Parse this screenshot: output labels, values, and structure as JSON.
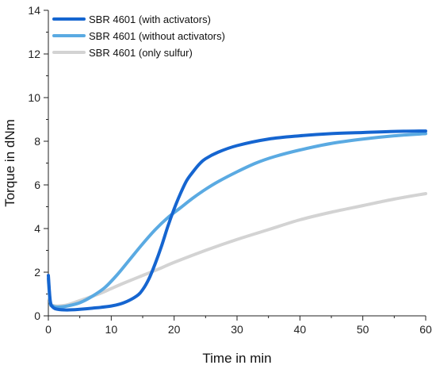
{
  "chart_data": {
    "type": "line",
    "xlabel": "Time in min",
    "ylabel": "Torque in dNm",
    "xlim": [
      0,
      60
    ],
    "ylim": [
      0,
      14
    ],
    "x_ticks": [
      "0",
      "10",
      "20",
      "30",
      "40",
      "50",
      "60"
    ],
    "y_ticks": [
      "0",
      "2",
      "4",
      "6",
      "8",
      "10",
      "12",
      "14"
    ],
    "grid": false,
    "legend_position": "top-left",
    "series": [
      {
        "name": "SBR 4601 (with activators)",
        "color": "#1565d0",
        "points": [
          [
            0,
            1.85
          ],
          [
            0.3,
            0.7
          ],
          [
            0.7,
            0.4
          ],
          [
            1.5,
            0.3
          ],
          [
            3,
            0.27
          ],
          [
            5,
            0.3
          ],
          [
            7,
            0.35
          ],
          [
            10,
            0.45
          ],
          [
            12,
            0.6
          ],
          [
            14,
            0.9
          ],
          [
            15,
            1.2
          ],
          [
            16,
            1.7
          ],
          [
            17,
            2.4
          ],
          [
            18,
            3.2
          ],
          [
            19,
            4.1
          ],
          [
            20,
            4.9
          ],
          [
            21,
            5.6
          ],
          [
            22,
            6.2
          ],
          [
            23,
            6.6
          ],
          [
            24,
            6.95
          ],
          [
            25,
            7.2
          ],
          [
            27,
            7.5
          ],
          [
            30,
            7.8
          ],
          [
            35,
            8.1
          ],
          [
            40,
            8.25
          ],
          [
            45,
            8.35
          ],
          [
            50,
            8.4
          ],
          [
            55,
            8.45
          ],
          [
            60,
            8.47
          ]
        ]
      },
      {
        "name": "SBR 4601 (without activators)",
        "color": "#5aaae2",
        "points": [
          [
            0,
            1.7
          ],
          [
            0.3,
            0.6
          ],
          [
            0.7,
            0.45
          ],
          [
            1.5,
            0.4
          ],
          [
            3,
            0.45
          ],
          [
            5,
            0.6
          ],
          [
            7,
            0.9
          ],
          [
            9,
            1.3
          ],
          [
            11,
            1.9
          ],
          [
            13,
            2.6
          ],
          [
            15,
            3.3
          ],
          [
            17,
            3.95
          ],
          [
            19,
            4.5
          ],
          [
            21,
            4.95
          ],
          [
            23,
            5.4
          ],
          [
            25,
            5.8
          ],
          [
            27,
            6.15
          ],
          [
            30,
            6.6
          ],
          [
            33,
            7.0
          ],
          [
            36,
            7.3
          ],
          [
            40,
            7.6
          ],
          [
            45,
            7.9
          ],
          [
            50,
            8.1
          ],
          [
            55,
            8.25
          ],
          [
            60,
            8.35
          ]
        ]
      },
      {
        "name": "SBR 4601 (only sulfur)",
        "color": "#d3d3d3",
        "points": [
          [
            0,
            1.6
          ],
          [
            0.3,
            0.6
          ],
          [
            0.7,
            0.48
          ],
          [
            1.5,
            0.45
          ],
          [
            3,
            0.5
          ],
          [
            5,
            0.7
          ],
          [
            8,
            1.0
          ],
          [
            10,
            1.25
          ],
          [
            12,
            1.5
          ],
          [
            15,
            1.85
          ],
          [
            18,
            2.2
          ],
          [
            20,
            2.45
          ],
          [
            25,
            3.0
          ],
          [
            30,
            3.5
          ],
          [
            35,
            3.95
          ],
          [
            40,
            4.4
          ],
          [
            45,
            4.75
          ],
          [
            50,
            5.05
          ],
          [
            55,
            5.35
          ],
          [
            60,
            5.6
          ]
        ]
      }
    ]
  }
}
